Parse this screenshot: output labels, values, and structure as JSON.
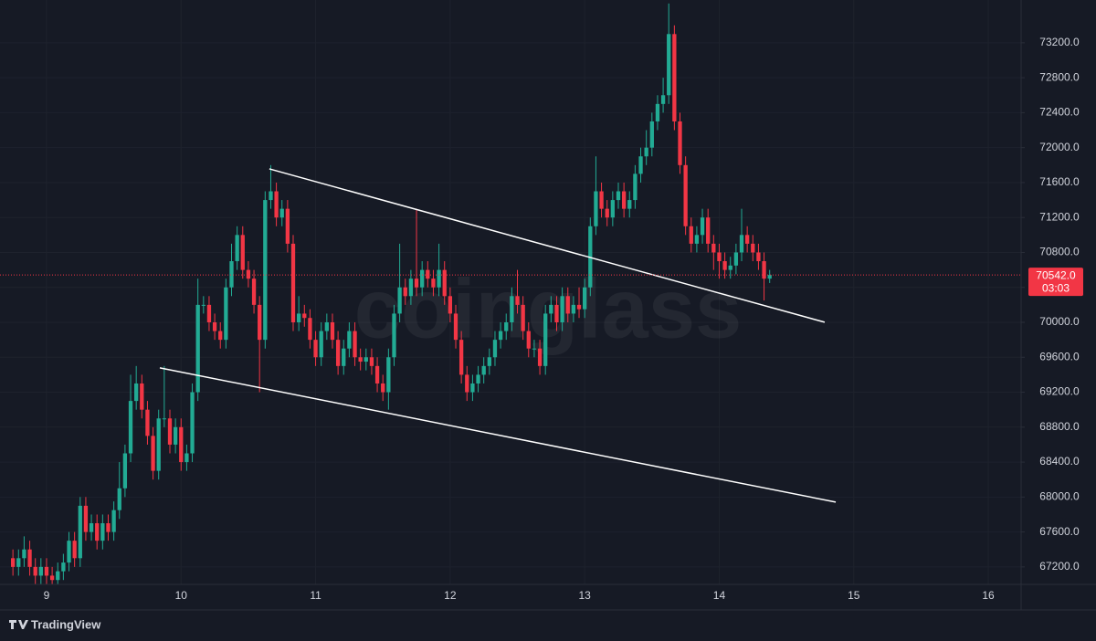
{
  "chart_data": {
    "type": "candlestick",
    "watermark": "coinglass",
    "brand": "TradingView",
    "xlim": [
      8.654,
      16.244
    ],
    "ylim": [
      67000,
      73690
    ],
    "xticks": [
      9,
      10,
      11,
      12,
      13,
      14,
      15,
      16
    ],
    "yticks": [
      {
        "value": 67200,
        "label": "67200.0"
      },
      {
        "value": 67600,
        "label": "67600.0"
      },
      {
        "value": 68000,
        "label": "68000.0"
      },
      {
        "value": 68400,
        "label": "68400.0"
      },
      {
        "value": 68800,
        "label": "68800.0"
      },
      {
        "value": 69200,
        "label": "69200.0"
      },
      {
        "value": 69600,
        "label": "69600.0"
      },
      {
        "value": 70000,
        "label": "70000.0"
      },
      {
        "value": 70400,
        "label": "70400.0"
      },
      {
        "value": 70800,
        "label": "70800.0"
      },
      {
        "value": 71200,
        "label": "71200.0"
      },
      {
        "value": 71600,
        "label": "71600.0"
      },
      {
        "value": 72000,
        "label": "72000.0"
      },
      {
        "value": 72400,
        "label": "72400.0"
      },
      {
        "value": 72800,
        "label": "72800.0"
      },
      {
        "value": 73200,
        "label": "73200.0"
      }
    ],
    "grid": true,
    "up_color": "#22ab94",
    "down_color": "#f23645",
    "x": [
      8.75,
      8.7917,
      8.8333,
      8.875,
      8.9167,
      8.9583,
      9,
      9.0417,
      9.0833,
      9.125,
      9.1667,
      9.2083,
      9.25,
      9.2917,
      9.3333,
      9.375,
      9.4167,
      9.4583,
      9.5,
      9.5417,
      9.5833,
      9.625,
      9.6667,
      9.7083,
      9.75,
      9.7917,
      9.8333,
      9.875,
      9.9167,
      9.9583,
      10,
      10.0417,
      10.0833,
      10.125,
      10.1667,
      10.2083,
      10.25,
      10.2917,
      10.3333,
      10.375,
      10.4167,
      10.4583,
      10.5,
      10.5417,
      10.5833,
      10.625,
      10.6667,
      10.7083,
      10.75,
      10.7917,
      10.8333,
      10.875,
      10.9167,
      10.9583,
      11,
      11.0417,
      11.0833,
      11.125,
      11.1667,
      11.2083,
      11.25,
      11.2917,
      11.3333,
      11.375,
      11.4167,
      11.4583,
      11.5,
      11.5417,
      11.5833,
      11.625,
      11.6667,
      11.7083,
      11.75,
      11.7917,
      11.8333,
      11.875,
      11.9167,
      11.9583,
      12,
      12.0417,
      12.0833,
      12.125,
      12.1667,
      12.2083,
      12.25,
      12.2917,
      12.3333,
      12.375,
      12.4167,
      12.4583,
      12.5,
      12.5417,
      12.5833,
      12.625,
      12.6667,
      12.7083,
      12.75,
      12.7917,
      12.8333,
      12.875,
      12.9167,
      12.9583,
      13,
      13.0417,
      13.0833,
      13.125,
      13.1667,
      13.2083,
      13.25,
      13.2917,
      13.3333,
      13.375,
      13.4167,
      13.4583,
      13.5,
      13.5417,
      13.5833,
      13.625,
      13.6667,
      13.7083,
      13.75,
      13.7917,
      13.8333,
      13.875,
      13.9167,
      13.9583,
      14,
      14.0417,
      14.0833,
      14.125,
      14.1667,
      14.2083,
      14.25,
      14.2917,
      14.3333,
      14.375
    ],
    "open": [
      67300,
      67200,
      67300,
      67400,
      67200,
      67100,
      67200,
      67100,
      67050,
      67150,
      67250,
      67500,
      67300,
      67900,
      67600,
      67700,
      67500,
      67700,
      67600,
      67850,
      68100,
      68500,
      69100,
      69300,
      69000,
      68700,
      68300,
      68900,
      68900,
      68600,
      68800,
      68400,
      68500,
      69200,
      70200,
      70200,
      70000,
      69900,
      69800,
      70400,
      70700,
      71000,
      70600,
      70500,
      70200,
      69800,
      71400,
      71500,
      71200,
      71300,
      70900,
      70000,
      70100,
      70050,
      69800,
      69600,
      69900,
      70000,
      69800,
      69500,
      69700,
      69900,
      69600,
      69550,
      69600,
      69500,
      69300,
      69200,
      69600,
      70100,
      70400,
      70300,
      70500,
      70400,
      70600,
      70500,
      70400,
      70600,
      70300,
      70100,
      69800,
      69400,
      69200,
      69300,
      69400,
      69500,
      69600,
      69800,
      69900,
      70000,
      70300,
      70200,
      69900,
      69700,
      69700,
      69500,
      70100,
      70200,
      70000,
      70300,
      70100,
      70200,
      70150,
      70400,
      71100,
      71500,
      71300,
      71200,
      71400,
      71500,
      71300,
      71400,
      71700,
      71900,
      72000,
      72300,
      72500,
      72600,
      73300,
      72300,
      71800,
      71100,
      70900,
      71000,
      71200,
      70900,
      70800,
      70700,
      70600,
      70650,
      70800,
      71000,
      70900,
      70800,
      70700,
      70500
    ],
    "high": [
      67400,
      67400,
      67550,
      67500,
      67300,
      67300,
      67300,
      67200,
      67250,
      67350,
      67600,
      67600,
      68000,
      68000,
      67800,
      67800,
      67800,
      67800,
      67950,
      68400,
      68600,
      69400,
      69500,
      69400,
      69100,
      68800,
      69000,
      69500,
      69000,
      68900,
      68900,
      68600,
      69300,
      70500,
      70300,
      70300,
      70100,
      70000,
      70500,
      70900,
      71100,
      71100,
      70700,
      70600,
      70300,
      71500,
      71800,
      71600,
      71400,
      71400,
      71000,
      70300,
      70200,
      70150,
      69900,
      70000,
      70100,
      70100,
      69900,
      69800,
      70000,
      70000,
      69700,
      69700,
      69700,
      69600,
      69400,
      69700,
      70200,
      70900,
      70500,
      70600,
      71300,
      70700,
      70700,
      70600,
      70900,
      70700,
      70400,
      70200,
      69900,
      69500,
      69400,
      69500,
      69600,
      69700,
      69900,
      70000,
      70100,
      70400,
      70600,
      70300,
      70000,
      69800,
      69800,
      70200,
      70300,
      70300,
      70400,
      70400,
      70300,
      70400,
      70500,
      71200,
      71900,
      71600,
      71400,
      71500,
      71600,
      71600,
      71500,
      71800,
      72000,
      72200,
      72400,
      72600,
      72800,
      73650,
      73400,
      72400,
      71900,
      71200,
      71100,
      71300,
      71300,
      71000,
      70900,
      70800,
      70750,
      70900,
      71300,
      71100,
      71000,
      70900,
      70800,
      70600
    ],
    "low": [
      67100,
      67100,
      67200,
      67100,
      67000,
      67000,
      67000,
      66950,
      66950,
      67050,
      67150,
      67200,
      67200,
      67500,
      67500,
      67400,
      67400,
      67500,
      67500,
      67750,
      68000,
      68400,
      69000,
      68900,
      68600,
      68200,
      68200,
      68800,
      68500,
      68500,
      68300,
      68300,
      68400,
      69100,
      70100,
      69900,
      69800,
      69700,
      69700,
      70300,
      70600,
      70500,
      70400,
      70100,
      69200,
      69700,
      71300,
      71100,
      71100,
      70800,
      69900,
      69900,
      69950,
      69700,
      69500,
      69500,
      69800,
      69700,
      69400,
      69400,
      69600,
      69500,
      69450,
      69450,
      69400,
      69200,
      69100,
      69000,
      69500,
      70000,
      70200,
      70200,
      70300,
      70300,
      70400,
      70300,
      70300,
      70200,
      70000,
      69700,
      69300,
      69100,
      69100,
      69200,
      69300,
      69400,
      69500,
      69700,
      69800,
      69900,
      70100,
      69800,
      69600,
      69600,
      69400,
      69400,
      70000,
      69900,
      69900,
      70000,
      70000,
      70050,
      70050,
      70300,
      71000,
      71200,
      71100,
      71100,
      71300,
      71200,
      71200,
      71300,
      71600,
      71800,
      71900,
      72200,
      72400,
      72500,
      72200,
      71700,
      71000,
      70800,
      70800,
      70900,
      70800,
      70600,
      70500,
      70500,
      70500,
      70550,
      70700,
      70800,
      70700,
      70600,
      70250,
      70450
    ],
    "close": [
      67200,
      67300,
      67400,
      67200,
      67100,
      67200,
      67100,
      67050,
      67150,
      67250,
      67500,
      67300,
      67900,
      67600,
      67700,
      67500,
      67700,
      67600,
      67850,
      68100,
      68500,
      69100,
      69300,
      69000,
      68700,
      68300,
      68900,
      68900,
      68600,
      68800,
      68400,
      68500,
      69200,
      70200,
      70200,
      70000,
      69900,
      69800,
      70400,
      70700,
      71000,
      70600,
      70500,
      70200,
      69800,
      71400,
      71500,
      71200,
      71300,
      70900,
      70000,
      70100,
      70050,
      69800,
      69600,
      69900,
      70000,
      69800,
      69500,
      69700,
      69900,
      69600,
      69550,
      69600,
      69500,
      69300,
      69200,
      69600,
      70100,
      70400,
      70300,
      70500,
      70400,
      70600,
      70500,
      70400,
      70600,
      70300,
      70100,
      69800,
      69400,
      69200,
      69300,
      69400,
      69500,
      69600,
      69800,
      69900,
      70000,
      70300,
      70200,
      69900,
      69700,
      69700,
      69500,
      70100,
      70200,
      70000,
      70300,
      70100,
      70200,
      70150,
      70400,
      71100,
      71500,
      71300,
      71200,
      71400,
      71500,
      71300,
      71400,
      71700,
      71900,
      72000,
      72300,
      72500,
      72600,
      73300,
      72300,
      71800,
      71100,
      70900,
      71000,
      71200,
      70900,
      70800,
      70700,
      70600,
      70650,
      70800,
      71000,
      70900,
      70800,
      70700,
      70500,
      70542
    ],
    "trendlines": [
      {
        "x": [
          10.656,
          14.784
        ],
        "y": [
          71757,
          70001
        ]
      },
      {
        "x": [
          9.842,
          14.866
        ],
        "y": [
          69479,
          67942
        ]
      }
    ],
    "last_price": {
      "value": 70542,
      "label": "70542.0"
    },
    "countdown": "03:03"
  }
}
